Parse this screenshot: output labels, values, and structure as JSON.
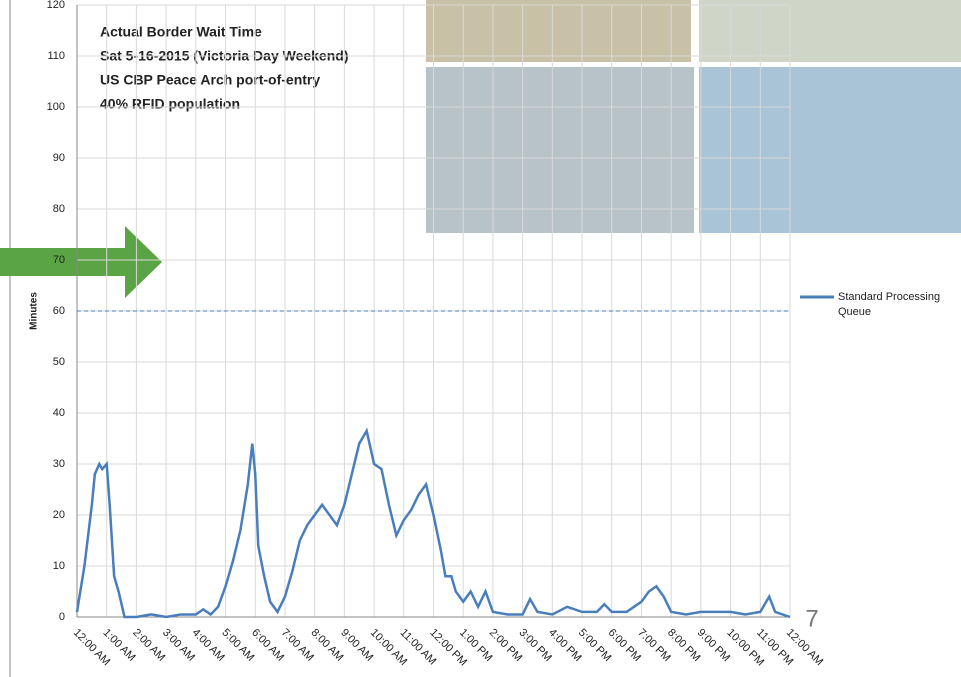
{
  "chart_data": {
    "type": "line",
    "annotations": [
      "Actual Border Wait Time",
      "Sat 5-16-2015 (Victoria Day Weekend)",
      "US CBP Peace Arch port-of-entry",
      "40% RFID population"
    ],
    "y_label": "Minutes",
    "page_number": "7",
    "x": [
      0,
      0.25,
      0.5,
      0.6,
      0.75,
      0.85,
      1,
      1.1,
      1.25,
      1.4,
      1.6,
      2,
      2.5,
      3,
      3.5,
      4,
      4.25,
      4.5,
      4.75,
      5,
      5.25,
      5.5,
      5.75,
      5.9,
      6,
      6.1,
      6.3,
      6.5,
      6.75,
      7,
      7.25,
      7.5,
      7.75,
      8,
      8.25,
      8.5,
      8.75,
      9,
      9.25,
      9.5,
      9.75,
      10,
      10.25,
      10.5,
      10.75,
      11,
      11.25,
      11.5,
      11.75,
      12,
      12.25,
      12.4,
      12.6,
      12.75,
      13,
      13.25,
      13.5,
      13.75,
      14,
      14.5,
      15,
      15.25,
      15.5,
      16,
      16.5,
      17,
      17.5,
      17.75,
      18,
      18.5,
      19,
      19.25,
      19.5,
      19.75,
      20,
      20.5,
      21,
      21.5,
      22,
      22.5,
      23,
      23.3,
      23.5,
      24
    ],
    "series": [
      {
        "name": "Standard Processing Queue",
        "color": "#4a7ebb",
        "values": [
          1,
          10,
          22,
          28,
          30,
          29,
          30,
          22,
          8,
          5,
          0,
          0,
          0.5,
          0,
          0.5,
          0.5,
          1.5,
          0.5,
          2,
          6,
          11,
          17,
          26,
          34,
          28,
          14,
          8,
          3,
          1,
          4,
          9,
          15,
          18,
          20,
          22,
          20,
          18,
          22,
          28,
          34,
          36.5,
          30,
          29,
          22,
          16,
          19,
          21,
          24,
          26,
          20,
          13,
          8,
          8,
          5,
          3,
          5,
          2,
          5,
          1,
          0.5,
          0.5,
          3.5,
          1,
          0.5,
          2,
          1,
          1,
          2.5,
          1,
          1,
          3,
          5,
          6,
          4,
          1,
          0.5,
          1,
          1,
          1,
          0.5,
          1,
          4,
          1,
          0
        ]
      }
    ],
    "reference_line": 60,
    "xlim": [
      0,
      24
    ],
    "xticks": [
      {
        "value": 0,
        "label": "12:00 AM"
      },
      {
        "value": 1,
        "label": "1:00 AM"
      },
      {
        "value": 2,
        "label": "2:00 AM"
      },
      {
        "value": 3,
        "label": "3:00 AM"
      },
      {
        "value": 4,
        "label": "4:00 AM"
      },
      {
        "value": 5,
        "label": "5:00 AM"
      },
      {
        "value": 6,
        "label": "6:00 AM"
      },
      {
        "value": 7,
        "label": "7:00 AM"
      },
      {
        "value": 8,
        "label": "8:00 AM"
      },
      {
        "value": 9,
        "label": "9:00 AM"
      },
      {
        "value": 10,
        "label": "10:00 AM"
      },
      {
        "value": 11,
        "label": "11:00 AM"
      },
      {
        "value": 12,
        "label": "12:00 PM"
      },
      {
        "value": 13,
        "label": "1:00 PM"
      },
      {
        "value": 14,
        "label": "2:00 PM"
      },
      {
        "value": 15,
        "label": "3:00 PM"
      },
      {
        "value": 16,
        "label": "4:00 PM"
      },
      {
        "value": 17,
        "label": "5:00 PM"
      },
      {
        "value": 18,
        "label": "6:00 PM"
      },
      {
        "value": 19,
        "label": "7:00 PM"
      },
      {
        "value": 20,
        "label": "8:00 PM"
      },
      {
        "value": 21,
        "label": "9:00 PM"
      },
      {
        "value": 22,
        "label": "10:00 PM"
      },
      {
        "value": 23,
        "label": "11:00 PM"
      },
      {
        "value": 24,
        "label": "12:00 AM"
      }
    ],
    "ylim": [
      0,
      120
    ],
    "yticks": [
      0,
      10,
      20,
      30,
      40,
      50,
      60,
      70,
      80,
      90,
      100,
      110,
      120
    ],
    "grid": true
  }
}
